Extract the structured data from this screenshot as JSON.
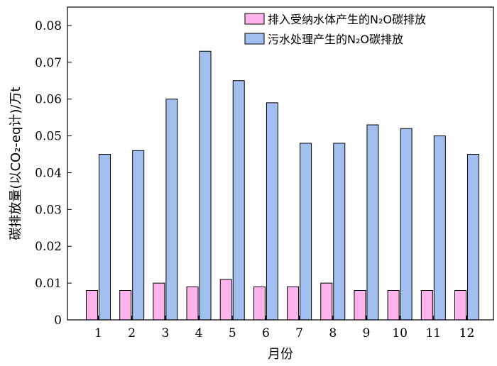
{
  "chart_data": {
    "type": "bar",
    "categories": [
      "1",
      "2",
      "3",
      "4",
      "5",
      "6",
      "7",
      "8",
      "9",
      "10",
      "11",
      "12"
    ],
    "series": [
      {
        "name": "排入受纳水体产生的N₂O碳排放",
        "color": "#ffb3ec",
        "values": [
          0.008,
          0.008,
          0.01,
          0.009,
          0.011,
          0.009,
          0.009,
          0.01,
          0.008,
          0.008,
          0.008,
          0.008
        ]
      },
      {
        "name": "污水处理产生的N₂O碳排放",
        "color": "#a3bff0",
        "values": [
          0.045,
          0.046,
          0.06,
          0.073,
          0.065,
          0.059,
          0.048,
          0.048,
          0.053,
          0.052,
          0.05,
          0.045
        ]
      }
    ],
    "xlabel": "月份",
    "ylabel": "碳排放量(以CO₂-eq计)/万t",
    "ylim": [
      0,
      0.085
    ],
    "yticks": [
      "0",
      "0.01",
      "0.02",
      "0.03",
      "0.04",
      "0.05",
      "0.06",
      "0.07",
      "0.08"
    ],
    "ytick_values": [
      0,
      0.01,
      0.02,
      0.03,
      0.04,
      0.05,
      0.06,
      0.07,
      0.08
    ],
    "legend_position": "top-right",
    "grid": false
  }
}
